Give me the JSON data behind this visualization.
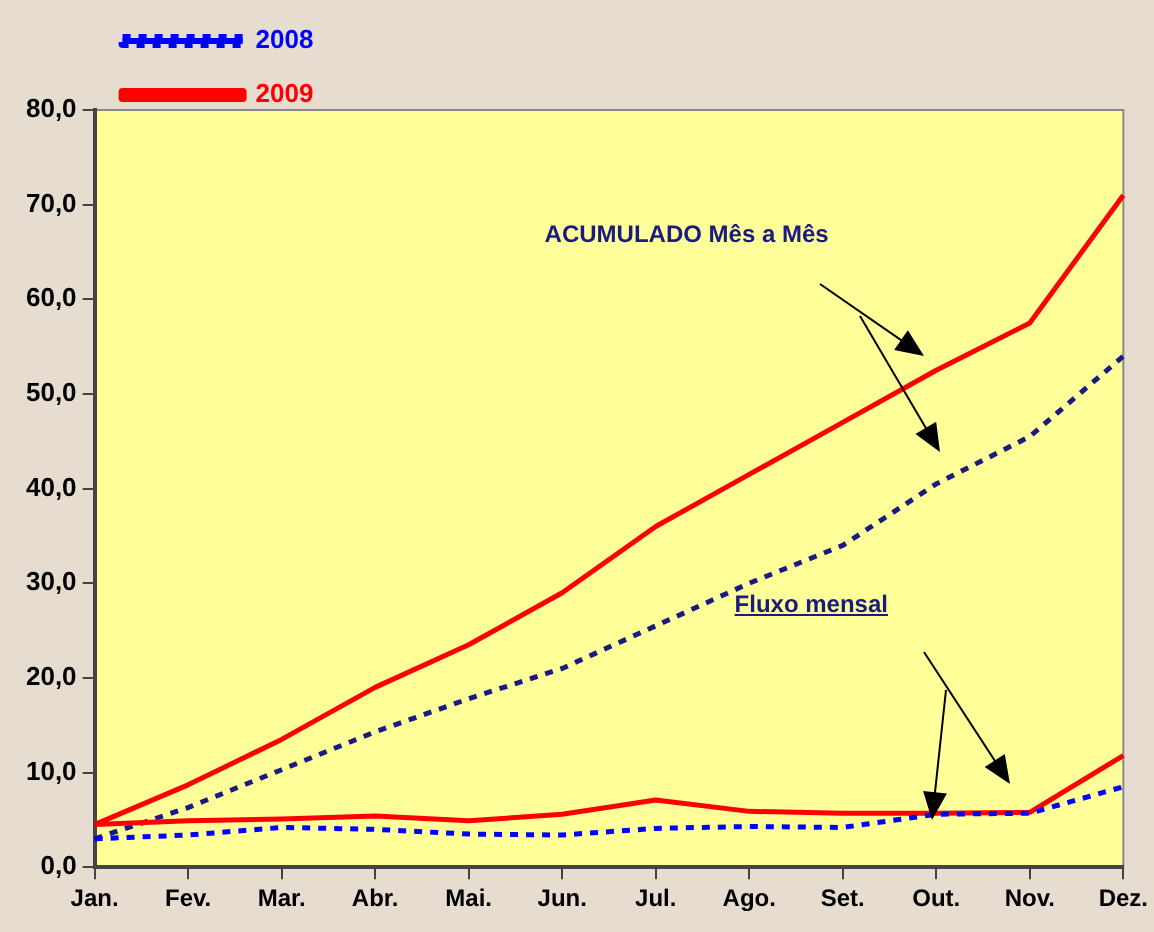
{
  "chart_data": {
    "type": "line",
    "categories": [
      "Jan.",
      "Fev.",
      "Mar.",
      "Abr.",
      "Mai.",
      "Jun.",
      "Jul.",
      "Ago.",
      "Set.",
      "Out.",
      "Nov.",
      "Dez."
    ],
    "series": [
      {
        "name": "2008",
        "color": "#0000ff",
        "line_style": "dotted",
        "values": [
          3.0,
          3.4,
          4.2,
          4.0,
          3.5,
          3.4,
          4.1,
          4.3,
          4.2,
          5.6,
          5.7,
          8.5
        ]
      },
      {
        "name": "2009",
        "color": "#ff0000",
        "line_style": "solid",
        "values": [
          4.5,
          4.9,
          5.1,
          5.4,
          4.9,
          5.6,
          7.1,
          5.9,
          5.7,
          5.7,
          5.8,
          11.8
        ]
      },
      {
        "color": "#1a1a80",
        "line_style": "dotted",
        "values": [
          3.0,
          6.3,
          10.3,
          14.3,
          17.8,
          21.0,
          25.5,
          30.0,
          34.0,
          40.5,
          45.5,
          54.0
        ]
      },
      {
        "color": "#ff0000",
        "line_style": "solid",
        "values": [
          4.5,
          8.7,
          13.5,
          19.0,
          23.5,
          29.0,
          36.0,
          41.5,
          47.0,
          52.5,
          57.5,
          71.0
        ]
      }
    ],
    "ylim": [
      0,
      80
    ],
    "yticks": [
      {
        "value": 0,
        "label": "0,0"
      },
      {
        "value": 10,
        "label": "10,0"
      },
      {
        "value": 20,
        "label": "20,0"
      },
      {
        "value": 30,
        "label": "30,0"
      },
      {
        "value": 40,
        "label": "40,0"
      },
      {
        "value": 50,
        "label": "50,0"
      },
      {
        "value": 60,
        "label": "60,0"
      },
      {
        "value": 70,
        "label": "70,0"
      },
      {
        "value": 80,
        "label": "80,0"
      }
    ],
    "annotations": [
      "ACUMULADO Mês a Mês",
      "Fluxo mensal"
    ],
    "grid": false,
    "legend": "left",
    "marker": "none"
  }
}
